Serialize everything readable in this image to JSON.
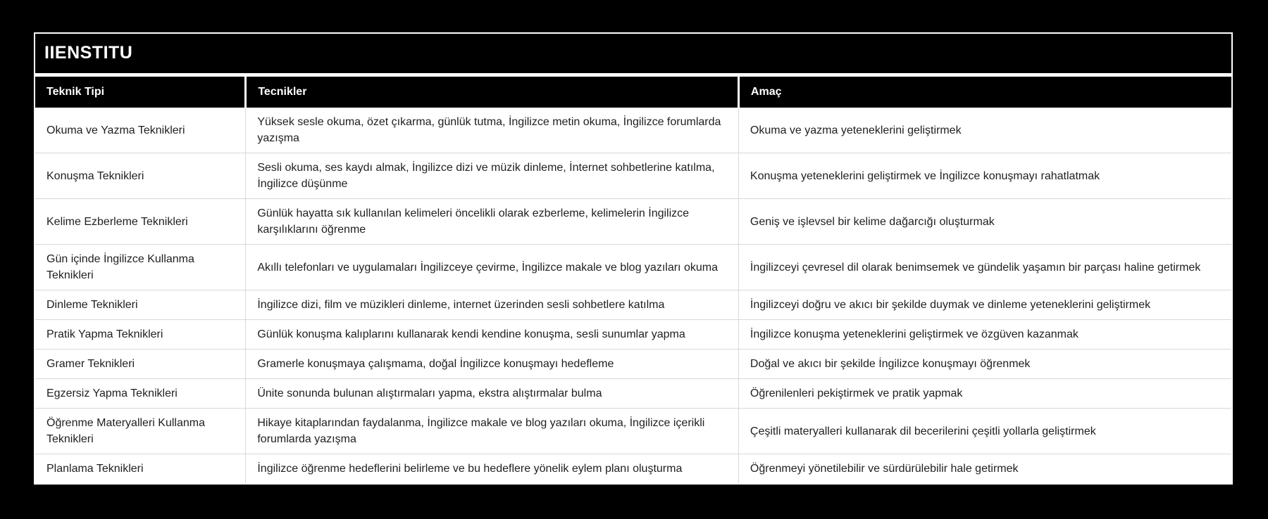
{
  "colors": {
    "page_background": "#000000",
    "card_background": "#ffffff",
    "title_bar_background": "#000000",
    "title_text": "#ffffff",
    "header_background": "#000000",
    "header_text": "#ffffff",
    "body_text": "#1f1f1f",
    "grid_line": "#d8d8d8"
  },
  "chart_data": {
    "type": "table",
    "title": "IIENSTITU",
    "columns": [
      "Teknik Tipi",
      "Tecnikler",
      "Amaç"
    ],
    "rows": [
      [
        "Okuma ve Yazma Teknikleri",
        "Yüksek sesle okuma, özet çıkarma, günlük tutma, İngilizce metin okuma, İngilizce forumlarda yazışma",
        "Okuma ve yazma yeteneklerini geliştirmek"
      ],
      [
        "Konuşma Teknikleri",
        "Sesli okuma, ses kaydı almak, İngilizce dizi ve müzik dinleme, İnternet sohbetlerine katılma, İngilizce düşünme",
        "Konuşma yeteneklerini geliştirmek ve İngilizce konuşmayı rahatlatmak"
      ],
      [
        "Kelime Ezberleme Teknikleri",
        "Günlük hayatta sık kullanılan kelimeleri öncelikli olarak ezberleme, kelimelerin İngilizce karşılıklarını öğrenme",
        "Geniş ve işlevsel bir kelime dağarcığı oluşturmak"
      ],
      [
        "Gün içinde İngilizce Kullanma Teknikleri",
        "Akıllı telefonları ve uygulamaları İngilizceye çevirme, İngilizce makale ve blog yazıları okuma",
        "İngilizceyi çevresel dil olarak benimsemek ve gündelik yaşamın bir parçası haline getirmek"
      ],
      [
        "Dinleme Teknikleri",
        "İngilizce dizi, film ve müzikleri dinleme, internet üzerinden sesli sohbetlere katılma",
        "İngilizceyi doğru ve akıcı bir şekilde duymak ve dinleme yeteneklerini geliştirmek"
      ],
      [
        "Pratik Yapma Teknikleri",
        "Günlük konuşma kalıplarını kullanarak kendi kendine konuşma, sesli sunumlar yapma",
        "İngilizce konuşma yeteneklerini geliştirmek ve özgüven kazanmak"
      ],
      [
        "Gramer Teknikleri",
        "Gramerle konuşmaya çalışmama, doğal İngilizce konuşmayı hedefleme",
        "Doğal ve akıcı bir şekilde İngilizce konuşmayı öğrenmek"
      ],
      [
        "Egzersiz Yapma Teknikleri",
        "Ünite sonunda bulunan alıştırmaları yapma, ekstra alıştırmalar bulma",
        "Öğrenilenleri pekiştirmek ve pratik yapmak"
      ],
      [
        "Öğrenme Materyalleri Kullanma Teknikleri",
        "Hikaye kitaplarından faydalanma, İngilizce makale ve blog yazıları okuma, İngilizce içerikli forumlarda yazışma",
        "Çeşitli materyalleri kullanarak dil becerilerini çeşitli yollarla geliştirmek"
      ],
      [
        "Planlama Teknikleri",
        "İngilizce öğrenme hedeflerini belirleme ve bu hedeflere yönelik eylem planı oluşturma",
        "Öğrenmeyi yönetilebilir ve sürdürülebilir hale getirmek"
      ]
    ]
  }
}
